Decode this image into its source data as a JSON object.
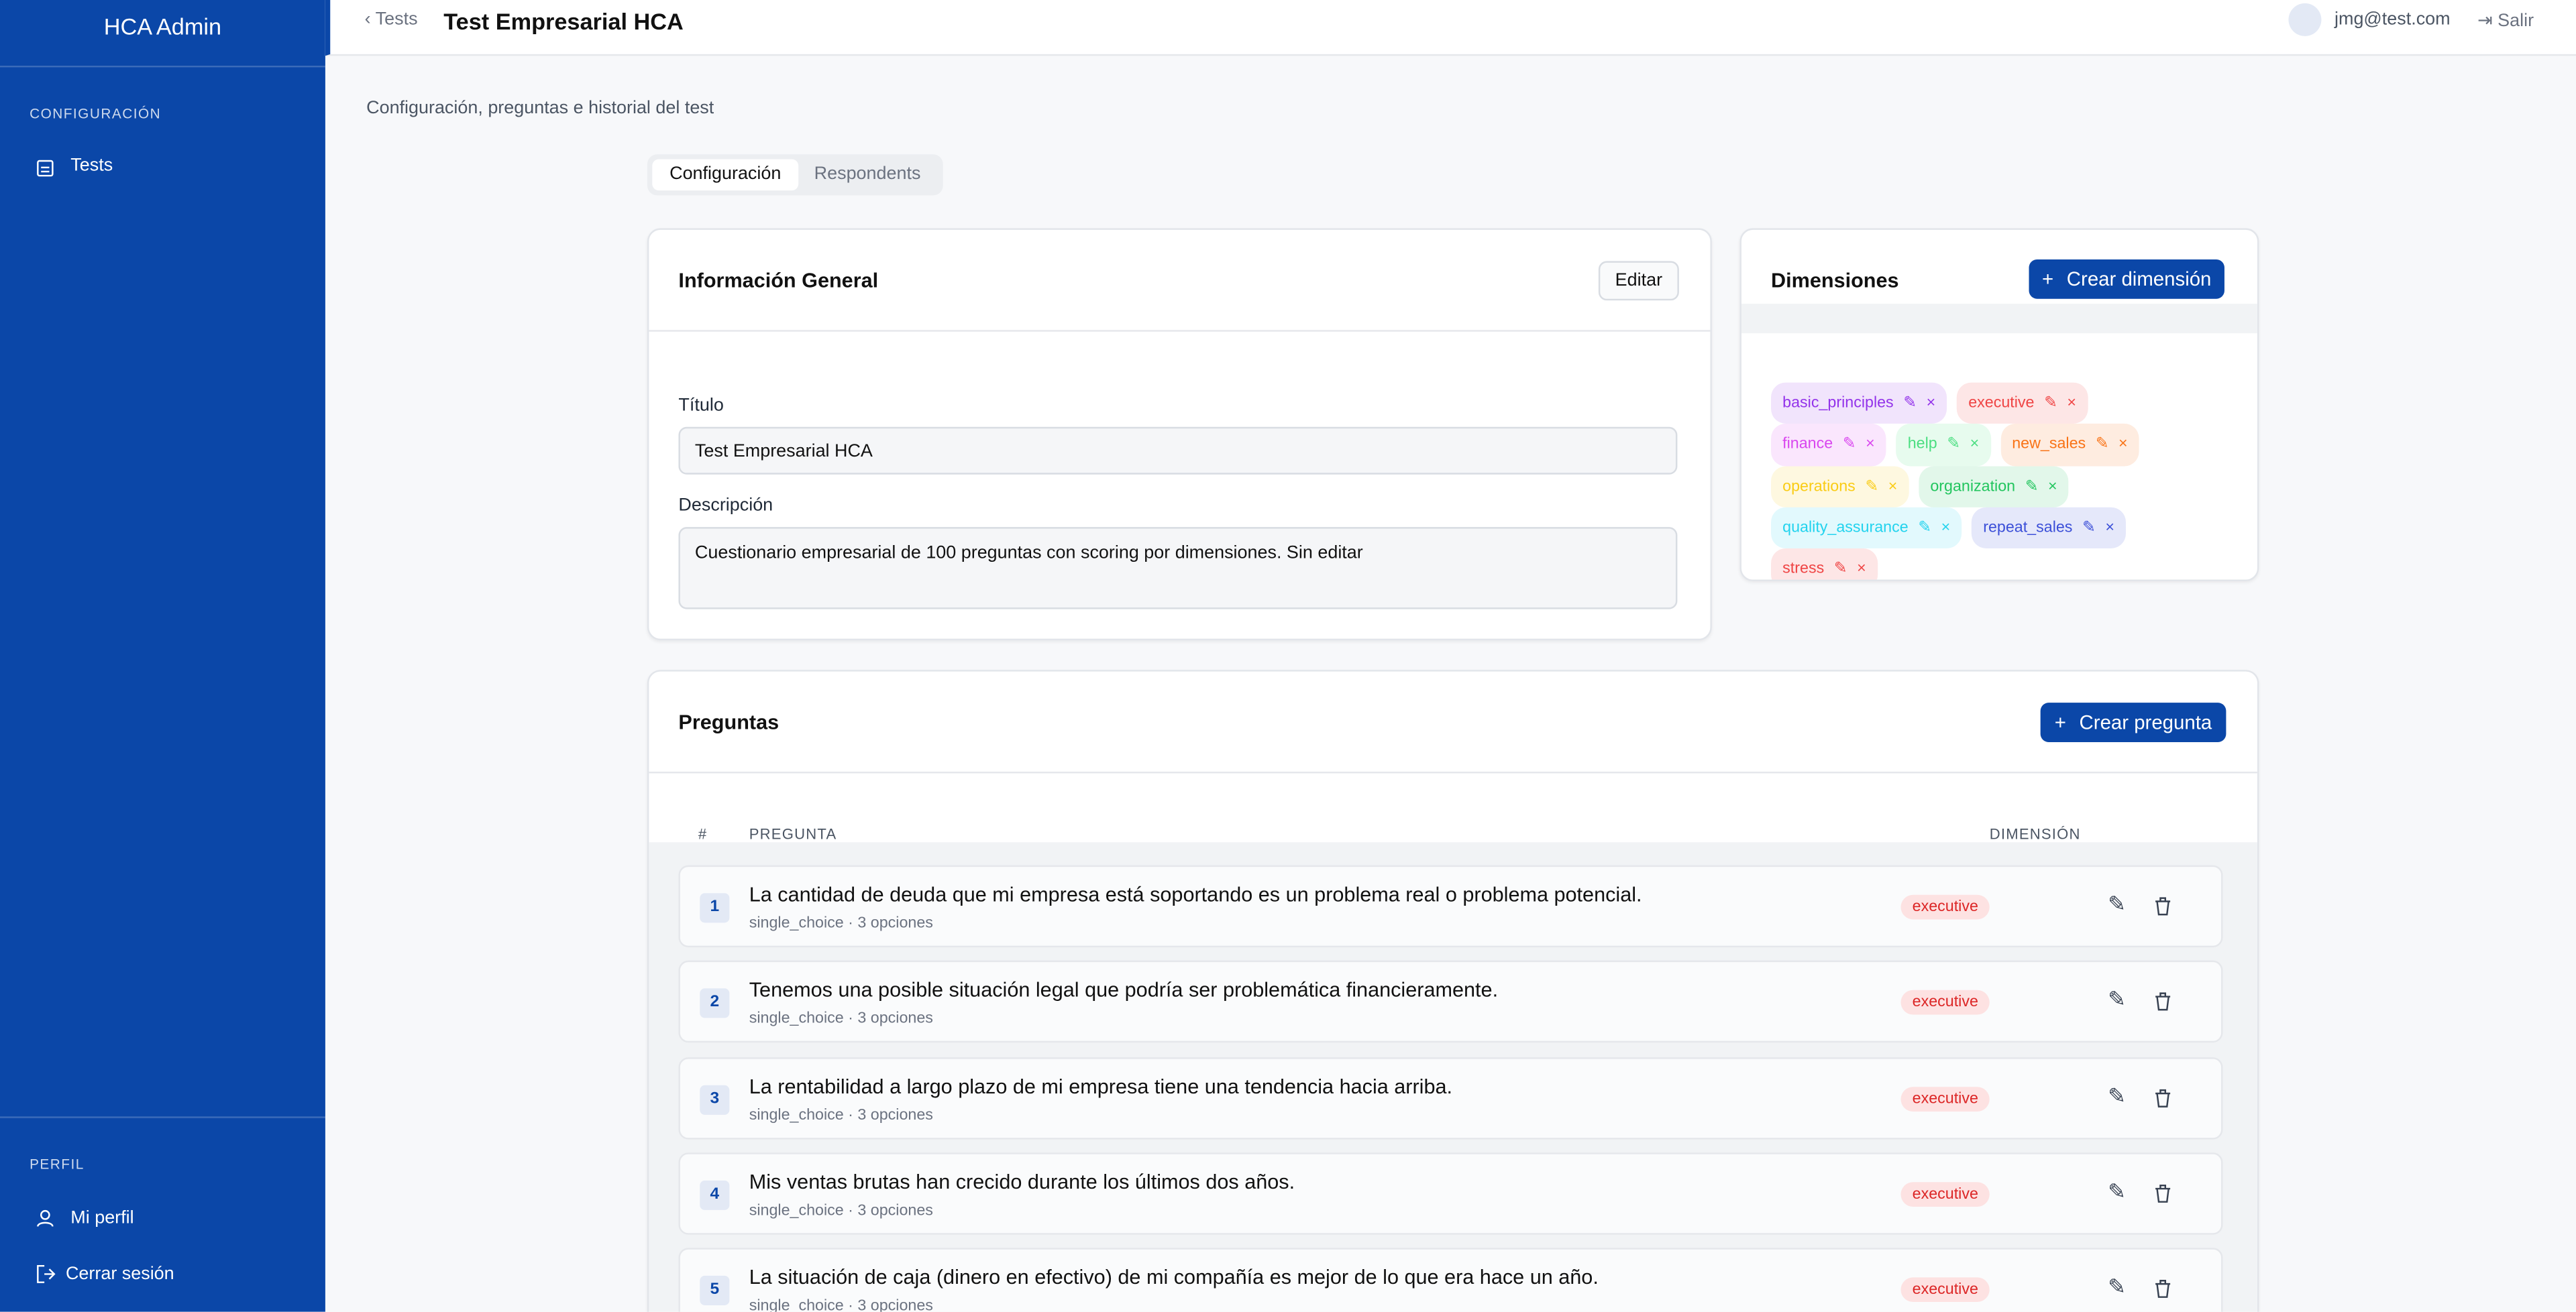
{
  "sidebar": {
    "brand": "HCA Admin",
    "section_config": "CONFIGURACIÓN",
    "nav": [
      "Tests"
    ],
    "section_profile": "PERFIL",
    "profile_links": [
      "Mi perfil",
      "Cerrar sesión"
    ]
  },
  "header": {
    "back": "Tests",
    "title": "Test Empresarial HCA",
    "user": "jmg@test.com",
    "logout": "Salir"
  },
  "subtitle": "Configuración, preguntas e historial del test",
  "tabs": [
    "Configuración",
    "Respondents"
  ],
  "general": {
    "title": "Información General",
    "edit": "Editar",
    "title_label": "Título",
    "title_value": "Test Empresarial HCA",
    "description_label": "Descripción",
    "description_value": "Cuestionario empresarial de 100 preguntas con scoring por dimensiones. Sin editar"
  },
  "dimensions": {
    "title": "Dimensiones",
    "create": "Crear dimensión",
    "items": [
      {
        "name": "basic_principles",
        "color": "#9333ea"
      },
      {
        "name": "executive",
        "color": "#ef4444"
      },
      {
        "name": "finance",
        "color": "#d946ef"
      },
      {
        "name": "help",
        "color": "#4ade80"
      },
      {
        "name": "new_sales",
        "color": "#f97316"
      },
      {
        "name": "operations",
        "color": "#facc15"
      },
      {
        "name": "organization",
        "color": "#22c55e"
      },
      {
        "name": "quality_assurance",
        "color": "#22d3ee"
      },
      {
        "name": "repeat_sales",
        "color": "#3b4fd8"
      },
      {
        "name": "stress",
        "color": "#ef4444"
      }
    ]
  },
  "questions": {
    "title": "Preguntas",
    "create": "Crear pregunta",
    "columns": [
      "#",
      "PREGUNTA",
      "DIMENSIÓN"
    ],
    "rows": [
      {
        "number": "1",
        "text": "La cantidad de deuda que mi empresa está soportando es un problema real o problema potencial.",
        "meta": "single_choice · 3 opciones",
        "dimension": "executive"
      },
      {
        "number": "2",
        "text": "Tenemos una posible situación legal que podría ser problemática financieramente.",
        "meta": "single_choice · 3 opciones",
        "dimension": "executive"
      },
      {
        "number": "3",
        "text": "La rentabilidad a largo plazo de mi empresa tiene una tendencia hacia arriba.",
        "meta": "single_choice · 3 opciones",
        "dimension": "executive"
      },
      {
        "number": "4",
        "text": "Mis ventas brutas han crecido durante los últimos dos años.",
        "meta": "single_choice · 3 opciones",
        "dimension": "executive"
      },
      {
        "number": "5",
        "text": "La situación de caja (dinero en efectivo) de mi compañía es mejor de lo que era hace un año.",
        "meta": "single_choice · 3 opciones",
        "dimension": "executive"
      }
    ]
  }
}
